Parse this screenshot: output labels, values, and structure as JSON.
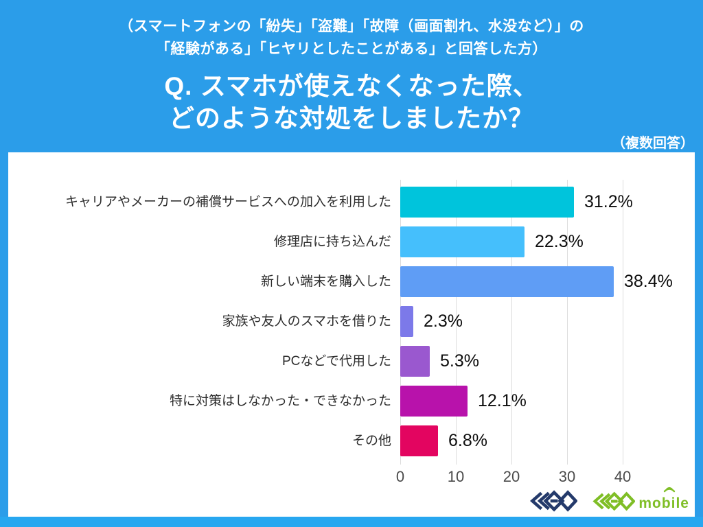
{
  "header": {
    "line1": "（スマートフォンの「紛失」「盗難」「故障（画面割れ、水没など）」の",
    "line2": "「経験がある」「ヒヤリとしたことがある」と回答した方）"
  },
  "title": {
    "line1": "Q. スマホが使えなくなった際、",
    "line2": "どのような対処をしましたか？"
  },
  "note": "（複数回答）",
  "chart_data": {
    "type": "bar",
    "orientation": "horizontal",
    "title": "",
    "xlabel": "",
    "ylabel": "",
    "categories": [
      "キャリアやメーカーの補償サービスへの加入を利用した",
      "修理店に持ち込んだ",
      "新しい端末を購入した",
      "家族や友人のスマホを借りた",
      "PCなどで代用した",
      "特に対策はしなかった・できなかった",
      "その他"
    ],
    "values": [
      31.2,
      22.3,
      38.4,
      2.3,
      5.3,
      12.1,
      6.8
    ],
    "value_labels": [
      "31.2%",
      "22.3%",
      "38.4%",
      "2.3%",
      "5.3%",
      "12.1%",
      "6.8%"
    ],
    "bar_colors": [
      "#00C4DC",
      "#45BFFC",
      "#5F9DF5",
      "#7C79E9",
      "#9A58CF",
      "#B812AB",
      "#E30560"
    ],
    "xlim": [
      0,
      50
    ],
    "x_ticks": [
      0,
      10,
      20,
      30,
      40
    ],
    "grid": true,
    "legend": "none",
    "unit": "%"
  },
  "footer": {
    "logo_geo_alt": "GEO",
    "logo_geo_mobile_alt": "GEO mobile",
    "mobile_text": "mobile"
  },
  "colors": {
    "background": "#2B9DE9",
    "bottom_strip": "#27A7F0",
    "panel": "#FFFFFF",
    "header_text": "#FFFFFF",
    "title_text": "#FFFFFF",
    "note_text": "#FFFFFF",
    "grid": "#DCDCDC",
    "axis_text": "#4B4B4B",
    "category_text": "#2E2E2E",
    "value_text": "#0D0D0D",
    "logo_navy": "#243A6B",
    "logo_green": "#7FBE26"
  }
}
